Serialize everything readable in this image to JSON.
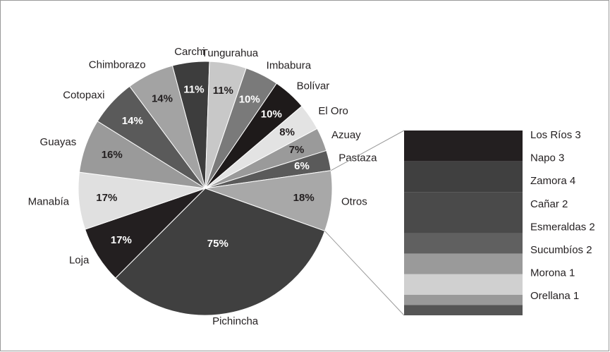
{
  "chart_data": {
    "type": "pie",
    "categories": [
      "Carchi",
      "Tungurahua",
      "Imbabura",
      "Bolívar",
      "El Oro",
      "Azuay",
      "Pastaza",
      "Otros",
      "Pichincha",
      "Loja",
      "Manabía",
      "Guayas",
      "Cotopaxi",
      "Chimborazo"
    ],
    "values": [
      11,
      11,
      10,
      10,
      8,
      7,
      6,
      18,
      75,
      17,
      17,
      16,
      14,
      14
    ],
    "value_labels": [
      "11%",
      "11%",
      "10%",
      "10%",
      "8%",
      "7%",
      "6%",
      "18%",
      "75%",
      "17%",
      "17%",
      "16%",
      "14%",
      "14%"
    ],
    "colors": [
      "#3d3d3d",
      "#c8c8c8",
      "#7a7a7a",
      "#1e1a1a",
      "#e3e3e3",
      "#9a9a9a",
      "#5a5a5a",
      "#a8a8a8",
      "#404040",
      "#231f20",
      "#e0e0e0",
      "#9a9a9a",
      "#5a5a5a",
      "#a3a3a3"
    ],
    "breakdown": {
      "type": "bar",
      "categories": [
        "Los Ríos",
        "Napo",
        "Zamora",
        "Cañar",
        "Esmeraldas",
        "Sucumbíos",
        "Morona",
        "Orellana"
      ],
      "values": [
        3,
        3,
        4,
        2,
        2,
        2,
        1,
        1
      ],
      "colors": [
        "#231f20",
        "#404040",
        "#4a4a4a",
        "#606060",
        "#9a9a9a",
        "#d0d0d0",
        "#999999",
        "#555555"
      ]
    }
  }
}
